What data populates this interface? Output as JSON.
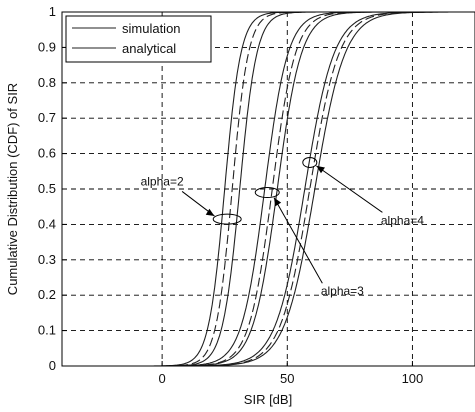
{
  "chart_data": {
    "type": "line",
    "title": "",
    "xlabel": "SIR [dB]",
    "ylabel": "Cumulative Distribution (CDF) of SIR",
    "xlim": [
      -40,
      125
    ],
    "ylim": [
      0,
      1
    ],
    "x_ticks": [
      "0",
      "50",
      "100"
    ],
    "x_tick_values": [
      0,
      50,
      100
    ],
    "y_ticks": [
      "0",
      "0.1",
      "0.2",
      "0.3",
      "0.4",
      "0.5",
      "0.6",
      "0.7",
      "0.8",
      "0.9",
      "1"
    ],
    "y_tick_values": [
      0,
      0.1,
      0.2,
      0.3,
      0.4,
      0.5,
      0.6,
      0.7,
      0.8,
      0.9,
      1
    ],
    "grid": true,
    "legend": {
      "placement": "top-left",
      "entries": [
        {
          "label": "simulation",
          "style": "solid"
        },
        {
          "label": "analytical",
          "style": "solid"
        }
      ]
    },
    "series": [
      {
        "group": "alpha=2",
        "style": "solid",
        "mu": 25,
        "s": 3.2,
        "x": [
          -40,
          10,
          15,
          18,
          20,
          22,
          24,
          25,
          26,
          28,
          30,
          33,
          40,
          125
        ],
        "y": [
          0,
          0.01,
          0.04,
          0.1,
          0.17,
          0.27,
          0.42,
          0.5,
          0.58,
          0.73,
          0.84,
          0.93,
          1.0,
          1.0
        ]
      },
      {
        "group": "alpha=2",
        "style": "dashed",
        "mu": 28,
        "s": 3.2,
        "x": [
          -40,
          13,
          18,
          21,
          23,
          25,
          27,
          28,
          29,
          31,
          33,
          36,
          43,
          125
        ],
        "y": [
          0,
          0.01,
          0.04,
          0.1,
          0.17,
          0.27,
          0.42,
          0.5,
          0.58,
          0.73,
          0.84,
          0.93,
          1.0,
          1.0
        ]
      },
      {
        "group": "alpha=2",
        "style": "solid",
        "mu": 31,
        "s": 3.4,
        "x": [
          -40,
          15,
          20,
          24,
          26,
          28,
          30,
          31,
          32,
          34,
          36,
          40,
          47,
          125
        ],
        "y": [
          0,
          0.01,
          0.04,
          0.1,
          0.17,
          0.27,
          0.42,
          0.5,
          0.58,
          0.73,
          0.84,
          0.93,
          1.0,
          1.0
        ]
      },
      {
        "group": "alpha=3",
        "style": "solid",
        "mu": 41,
        "s": 4.6,
        "x": [
          -40,
          20,
          27,
          32,
          35,
          38,
          40,
          41,
          42,
          44,
          47,
          52,
          62,
          125
        ],
        "y": [
          0,
          0.01,
          0.04,
          0.1,
          0.17,
          0.27,
          0.42,
          0.5,
          0.58,
          0.73,
          0.84,
          0.93,
          1.0,
          1.0
        ]
      },
      {
        "group": "alpha=3",
        "style": "dashed",
        "mu": 44,
        "s": 4.6,
        "x": [
          -40,
          23,
          30,
          35,
          38,
          41,
          43,
          44,
          45,
          47,
          50,
          55,
          65,
          125
        ],
        "y": [
          0,
          0.01,
          0.04,
          0.1,
          0.17,
          0.27,
          0.42,
          0.5,
          0.58,
          0.73,
          0.84,
          0.93,
          1.0,
          1.0
        ]
      },
      {
        "group": "alpha=3",
        "style": "solid",
        "mu": 46,
        "s": 4.8,
        "x": [
          -40,
          25,
          32,
          37,
          40,
          43,
          45,
          46,
          47,
          49,
          52,
          58,
          68,
          125
        ],
        "y": [
          0,
          0.01,
          0.04,
          0.1,
          0.17,
          0.27,
          0.42,
          0.5,
          0.58,
          0.73,
          0.84,
          0.93,
          1.0,
          1.0
        ]
      },
      {
        "group": "alpha=4",
        "style": "solid",
        "mu": 57,
        "s": 5.8,
        "x": [
          -40,
          30,
          40,
          46,
          50,
          53,
          56,
          57,
          58,
          61,
          65,
          72,
          85,
          125
        ],
        "y": [
          0,
          0.01,
          0.04,
          0.1,
          0.17,
          0.27,
          0.42,
          0.5,
          0.58,
          0.73,
          0.84,
          0.93,
          1.0,
          1.0
        ]
      },
      {
        "group": "alpha=4",
        "style": "dashed",
        "mu": 59,
        "s": 5.8,
        "x": [
          -40,
          32,
          42,
          48,
          52,
          55,
          58,
          59,
          60,
          63,
          67,
          74,
          87,
          125
        ],
        "y": [
          0,
          0.01,
          0.04,
          0.1,
          0.17,
          0.27,
          0.42,
          0.5,
          0.58,
          0.73,
          0.84,
          0.93,
          1.0,
          1.0
        ]
      },
      {
        "group": "alpha=4",
        "style": "solid",
        "mu": 61,
        "s": 6.0,
        "x": [
          -40,
          34,
          44,
          50,
          54,
          57,
          60,
          61,
          62,
          65,
          69,
          77,
          90,
          125
        ],
        "y": [
          0,
          0.01,
          0.04,
          0.1,
          0.17,
          0.27,
          0.42,
          0.5,
          0.58,
          0.73,
          0.84,
          0.93,
          1.0,
          1.0
        ]
      }
    ],
    "annotations": [
      {
        "label": "alpha=2",
        "label_x": 0,
        "label_y": 0.51,
        "target_x": 26,
        "target_y": 0.415
      },
      {
        "label": "alpha=3",
        "label_x": 72,
        "label_y": 0.2,
        "target_x": 42,
        "target_y": 0.49
      },
      {
        "label": "alpha=4",
        "label_x": 96,
        "label_y": 0.4,
        "target_x": 59,
        "target_y": 0.575
      }
    ]
  }
}
